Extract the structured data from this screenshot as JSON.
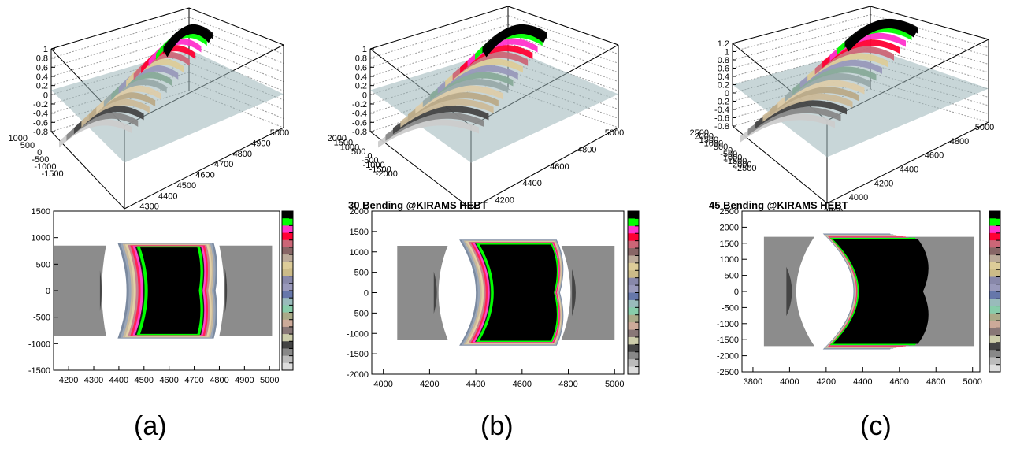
{
  "panels": [
    {
      "caption": "(a)",
      "title": "",
      "top3d": {
        "z_ticks": [
          "1",
          "0.8",
          "0.6",
          "0.4",
          "0.2",
          "0",
          "-0.2",
          "-0.4",
          "-0.6",
          "-0.8"
        ],
        "y_ticks": [
          "1000",
          "500",
          "0",
          "-500",
          "-1000",
          "-1500"
        ],
        "x_ticks": [
          "4200",
          "4300",
          "4400",
          "4500",
          "4600",
          "4700",
          "4800",
          "4900",
          "5000"
        ]
      },
      "bottom2d": {
        "y_ticks": [
          "1500",
          "1000",
          "500",
          "0",
          "-500",
          "-1000",
          "-1500"
        ],
        "x_ticks": [
          "4200",
          "4300",
          "4400",
          "4500",
          "4600",
          "4700",
          "4800",
          "4900",
          "5000"
        ],
        "xlim": [
          4140,
          5040
        ],
        "ylim": [
          -1500,
          1500
        ]
      }
    },
    {
      "caption": "(b)",
      "title": "30 Bending @KIRAMS HEBT",
      "top3d": {
        "z_ticks": [
          "1",
          "0.8",
          "0.6",
          "0.4",
          "0.2",
          "0",
          "-0.2",
          "-0.4",
          "-0.6",
          "-0.8"
        ],
        "y_ticks": [
          "2000",
          "1500",
          "1000",
          "500",
          "0",
          "-500",
          "-1000",
          "-1500",
          "-2000"
        ],
        "x_ticks": [
          "4000",
          "4200",
          "4400",
          "4600",
          "4800",
          "5000"
        ]
      },
      "bottom2d": {
        "y_ticks": [
          "2000",
          "1500",
          "1000",
          "500",
          "0",
          "-500",
          "-1000",
          "-1500",
          "-2000"
        ],
        "x_ticks": [
          "4000",
          "4200",
          "4400",
          "4600",
          "4800",
          "5000"
        ],
        "xlim": [
          3950,
          5040
        ],
        "ylim": [
          -2000,
          2000
        ]
      }
    },
    {
      "caption": "(c)",
      "title": "45 Bending @KIRAMS HEBT",
      "top3d": {
        "z_ticks": [
          "1.2",
          "1",
          "0.8",
          "0.6",
          "0.4",
          "0.2",
          "0",
          "-0.2",
          "-0.4",
          "-0.6",
          "-0.8"
        ],
        "y_ticks": [
          "2500",
          "2000",
          "1500",
          "1000",
          "500",
          "0",
          "-500",
          "-1000",
          "-1500",
          "-2000",
          "-2500"
        ],
        "x_ticks": [
          "3800",
          "4000",
          "4200",
          "4400",
          "4600",
          "4800",
          "5000"
        ]
      },
      "bottom2d": {
        "y_ticks": [
          "2500",
          "2000",
          "1500",
          "1000",
          "500",
          "0",
          "-500",
          "-1000",
          "-1500",
          "-2000",
          "-2500"
        ],
        "x_ticks": [
          "3800",
          "4000",
          "4200",
          "4400",
          "4600",
          "4800",
          "5000"
        ],
        "xlim": [
          3740,
          5040
        ],
        "ylim": [
          -2500,
          2500
        ]
      }
    }
  ],
  "colors": {
    "palette": [
      "#000000",
      "#00ff00",
      "#ff33cc",
      "#ff0033",
      "#cc6677",
      "#886666",
      "#bbaa99",
      "#ddcc99",
      "#ccbb88",
      "#8888aa",
      "#9999bb",
      "#6677aa",
      "#99bbbb",
      "#88ccaa",
      "#aaaa88",
      "#ccaa99",
      "#887777",
      "#ccccaa",
      "#444444",
      "#888888",
      "#bbbbbb",
      "#dddddd"
    ],
    "field_plane": "#9bb4b8",
    "shade_gray": "#8a8a8a"
  }
}
